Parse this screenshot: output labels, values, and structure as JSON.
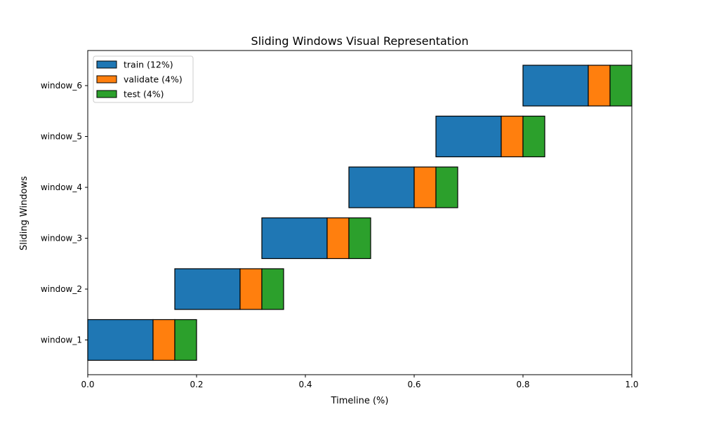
{
  "chart_data": {
    "type": "bar",
    "orientation": "horizontal-stacked",
    "title": "Sliding Windows Visual Representation",
    "xlabel": "Timeline (%)",
    "ylabel": "Sliding Windows",
    "xlim": [
      0,
      1
    ],
    "xticks": [
      "0.0",
      "0.2",
      "0.4",
      "0.6",
      "0.8",
      "1.0"
    ],
    "grid": false,
    "legend_position": "top-left",
    "categories": [
      "window_1",
      "window_2",
      "window_3",
      "window_4",
      "window_5",
      "window_6"
    ],
    "segments": [
      {
        "name": "train (12%)",
        "color": "#1f77b4"
      },
      {
        "name": "validate (4%)",
        "color": "#ff7f0e"
      },
      {
        "name": "test (4%)",
        "color": "#2ca02c"
      }
    ],
    "windows": [
      {
        "train": [
          0.0,
          0.12
        ],
        "validate": [
          0.12,
          0.16
        ],
        "test": [
          0.16,
          0.2
        ]
      },
      {
        "train": [
          0.16,
          0.28
        ],
        "validate": [
          0.28,
          0.32
        ],
        "test": [
          0.32,
          0.36
        ]
      },
      {
        "train": [
          0.32,
          0.44
        ],
        "validate": [
          0.44,
          0.48
        ],
        "test": [
          0.48,
          0.52
        ]
      },
      {
        "train": [
          0.48,
          0.6
        ],
        "validate": [
          0.6,
          0.64
        ],
        "test": [
          0.64,
          0.68
        ]
      },
      {
        "train": [
          0.64,
          0.76
        ],
        "validate": [
          0.76,
          0.8
        ],
        "test": [
          0.8,
          0.84
        ]
      },
      {
        "train": [
          0.8,
          0.92
        ],
        "validate": [
          0.92,
          0.96
        ],
        "test": [
          0.96,
          1.0
        ]
      }
    ]
  }
}
